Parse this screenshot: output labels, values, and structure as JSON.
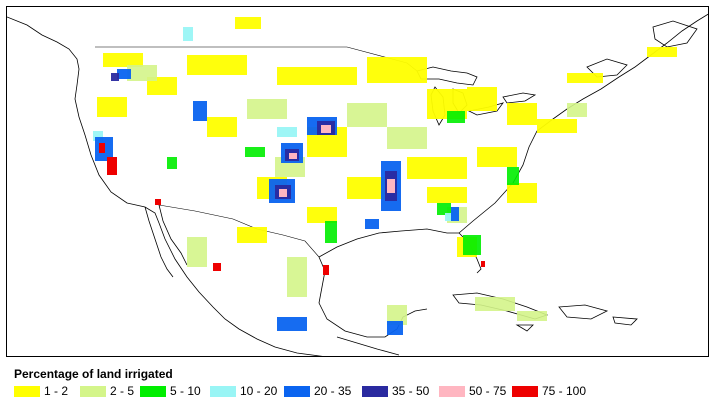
{
  "legend": {
    "title": "Percentage of land irrigated",
    "items": [
      {
        "label": "1 - 2",
        "color": "#ffff00"
      },
      {
        "label": "2 - 5",
        "color": "#d4f58a"
      },
      {
        "label": "5 - 10",
        "color": "#00ee00"
      },
      {
        "label": "10 - 20",
        "color": "#99f5f5"
      },
      {
        "label": "20 - 35",
        "color": "#0a64f0"
      },
      {
        "label": "35 - 50",
        "color": "#2a2aa0"
      },
      {
        "label": "50 - 75",
        "color": "#ffb6c1"
      },
      {
        "label": "75 - 100",
        "color": "#ee0000"
      }
    ]
  }
}
